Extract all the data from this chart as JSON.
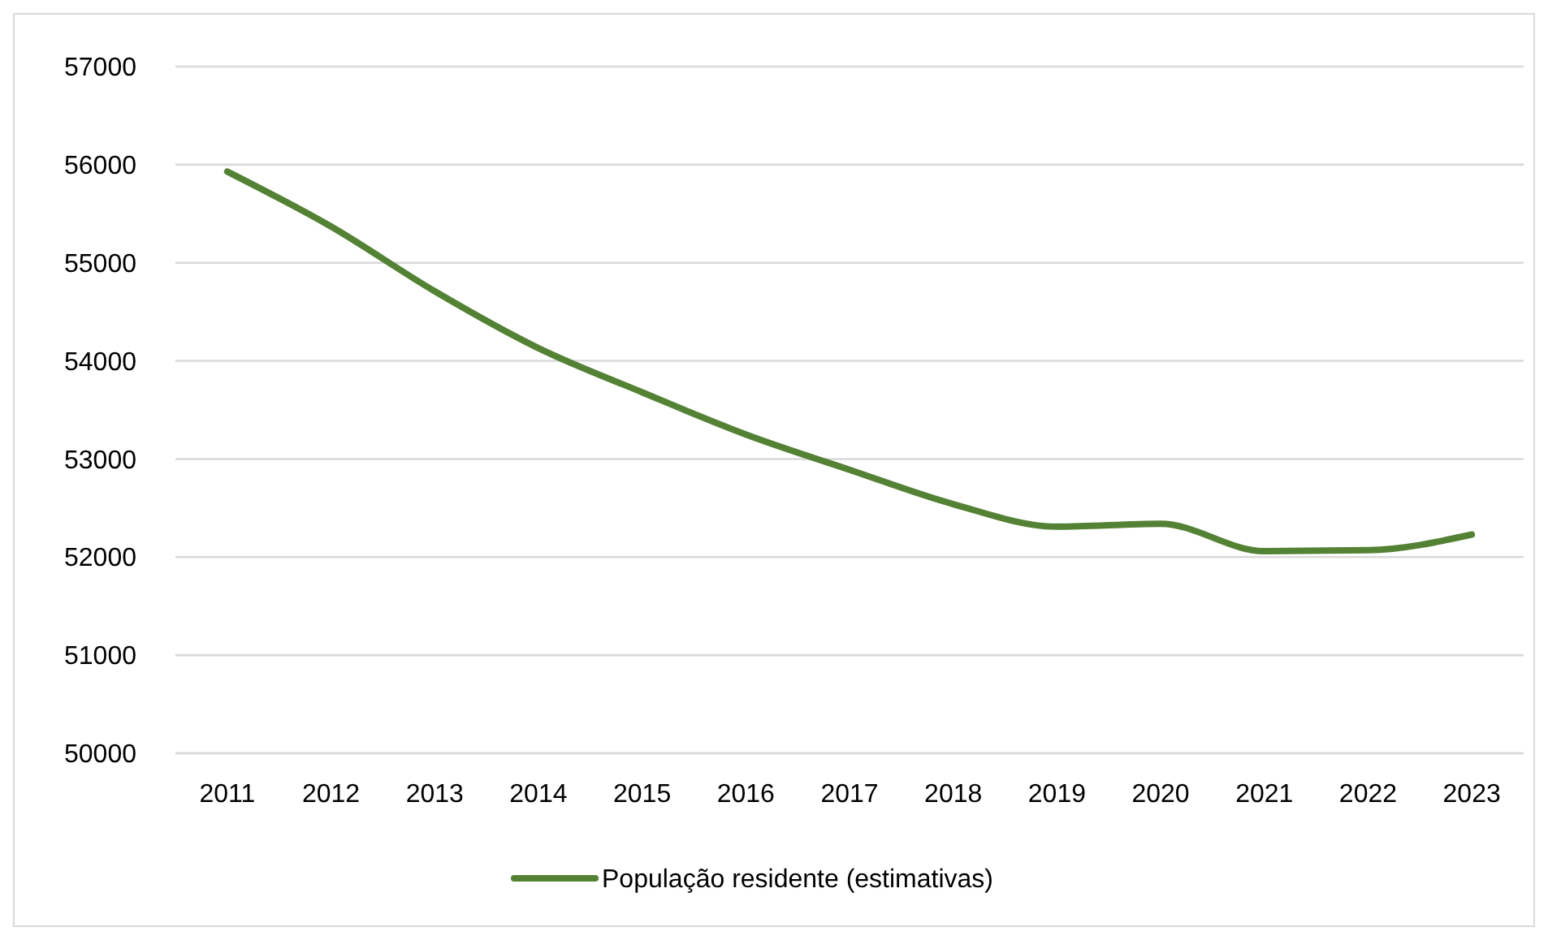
{
  "chart_data": {
    "type": "line",
    "categories": [
      "2011",
      "2012",
      "2013",
      "2014",
      "2015",
      "2016",
      "2017",
      "2018",
      "2019",
      "2020",
      "2021",
      "2022",
      "2023"
    ],
    "series": [
      {
        "name": "População residente (estimativas)",
        "color": "#548235",
        "values": [
          55930,
          55370,
          54710,
          54130,
          53680,
          53250,
          52890,
          52540,
          52310,
          52340,
          52060,
          52070,
          52230
        ]
      }
    ],
    "ylim": [
      50000,
      57000
    ],
    "yticks": [
      50000,
      51000,
      52000,
      53000,
      54000,
      55000,
      56000,
      57000
    ],
    "grid": "y",
    "legend": "bottom",
    "marker": "none",
    "line_style": "solid"
  }
}
